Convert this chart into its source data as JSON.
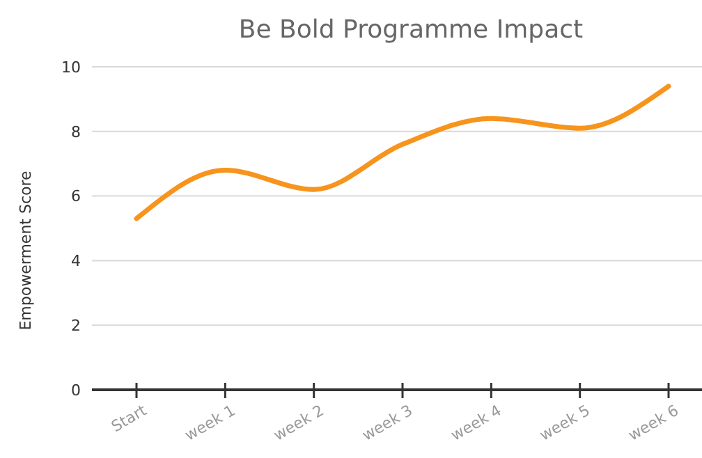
{
  "chart_data": {
    "type": "line",
    "title": "Be Bold Programme Impact",
    "ylabel": "Empowerment Score",
    "categories": [
      "Start",
      "week 1",
      "week 2",
      "week 3",
      "week 4",
      "week 5",
      "week 6"
    ],
    "series": [
      {
        "color": "#f7941d",
        "values": [
          5.3,
          6.8,
          6.2,
          7.6,
          8.4,
          8.1,
          9.4
        ]
      }
    ],
    "ylim": [
      0,
      10
    ],
    "yticks": [
      0,
      2,
      4,
      6,
      8,
      10
    ],
    "grid": "y",
    "marker": "none",
    "line_style": "solid"
  }
}
